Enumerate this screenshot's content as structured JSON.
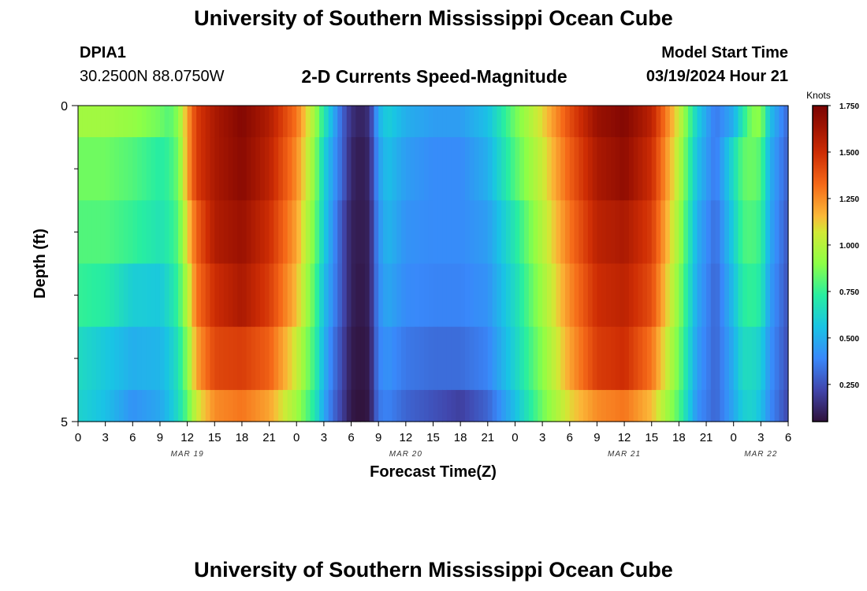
{
  "header": {
    "title": "University of Southern Mississippi Ocean Cube",
    "station": "DPIA1",
    "coords": "30.2500N  88.0750W",
    "subtitle": "2-D Currents Speed-Magnitude",
    "model_start_label": "Model Start Time",
    "model_start_value": "03/19/2024 Hour 21"
  },
  "footer": {
    "title": "University of Southern Mississippi Ocean Cube"
  },
  "chart_data": {
    "type": "heatmap",
    "xlabel": "Forecast Time(Z)",
    "ylabel": "Depth (ft)",
    "x_range_hours": [
      0,
      78
    ],
    "ylim": [
      0,
      5
    ],
    "y_ticks": [
      "0",
      "5"
    ],
    "x_tick_labels": [
      "0",
      "3",
      "6",
      "9",
      "12",
      "15",
      "18",
      "21",
      "0",
      "3",
      "6",
      "9",
      "12",
      "15",
      "18",
      "21",
      "0",
      "3",
      "6",
      "9",
      "12",
      "15",
      "18",
      "21",
      "0",
      "3",
      "6"
    ],
    "date_labels": [
      {
        "label": "MAR 19",
        "hour": 12
      },
      {
        "label": "MAR 20",
        "hour": 36
      },
      {
        "label": "MAR 21",
        "hour": 60
      },
      {
        "label": "MAR 22",
        "hour": 75
      }
    ],
    "colorbar": {
      "unit": "Knots",
      "min": 0.05,
      "max": 1.75,
      "tick_values": [
        0.25,
        0.5,
        0.75,
        1.0,
        1.25,
        1.5,
        1.75
      ],
      "tick_labels": [
        "0.250",
        "0.500",
        "0.750",
        "1.000",
        "1.250",
        "1.500",
        "1.750"
      ]
    },
    "depth_layer_bounds_ft": [
      0,
      0.5,
      1.5,
      2.5,
      3.5,
      4.5,
      5
    ],
    "hours": [
      0,
      3,
      6,
      9,
      10,
      11,
      12,
      13,
      15,
      18,
      21,
      24,
      26,
      27,
      28,
      29,
      30,
      31,
      32,
      33,
      34,
      36,
      39,
      42,
      45,
      48,
      51,
      54,
      57,
      60,
      63,
      66,
      68,
      70,
      72,
      73,
      74,
      75,
      76,
      78
    ],
    "values": [
      [
        0.95,
        0.95,
        0.92,
        0.85,
        0.8,
        0.9,
        1.2,
        1.45,
        1.6,
        1.72,
        1.58,
        1.3,
        0.95,
        0.7,
        0.5,
        0.3,
        0.15,
        0.1,
        0.15,
        0.5,
        0.6,
        0.5,
        0.45,
        0.45,
        0.55,
        0.85,
        1.1,
        1.4,
        1.65,
        1.72,
        1.55,
        1.05,
        0.6,
        0.35,
        0.5,
        0.7,
        0.88,
        0.9,
        0.55,
        0.3
      ],
      [
        0.85,
        0.85,
        0.8,
        0.72,
        0.75,
        0.85,
        1.2,
        1.45,
        1.6,
        1.7,
        1.55,
        1.25,
        0.9,
        0.62,
        0.45,
        0.3,
        0.12,
        0.08,
        0.12,
        0.45,
        0.55,
        0.45,
        0.4,
        0.4,
        0.5,
        0.8,
        1.05,
        1.35,
        1.6,
        1.68,
        1.5,
        1.0,
        0.55,
        0.35,
        0.65,
        0.82,
        0.85,
        0.8,
        0.5,
        0.28
      ],
      [
        0.8,
        0.8,
        0.75,
        0.68,
        0.72,
        0.8,
        1.1,
        1.35,
        1.58,
        1.65,
        1.5,
        1.2,
        0.85,
        0.6,
        0.42,
        0.25,
        0.1,
        0.08,
        0.1,
        0.42,
        0.52,
        0.42,
        0.4,
        0.4,
        0.45,
        0.7,
        1.0,
        1.3,
        1.55,
        1.6,
        1.45,
        0.95,
        0.5,
        0.32,
        0.6,
        0.78,
        0.8,
        0.75,
        0.48,
        0.26
      ],
      [
        0.75,
        0.72,
        0.6,
        0.58,
        0.65,
        0.75,
        1.0,
        1.3,
        1.5,
        1.6,
        1.45,
        1.15,
        0.8,
        0.55,
        0.4,
        0.25,
        0.1,
        0.07,
        0.1,
        0.4,
        0.48,
        0.4,
        0.38,
        0.38,
        0.42,
        0.65,
        0.95,
        1.25,
        1.5,
        1.55,
        1.4,
        0.9,
        0.48,
        0.3,
        0.55,
        0.72,
        0.75,
        0.7,
        0.45,
        0.25
      ],
      [
        0.65,
        0.58,
        0.5,
        0.52,
        0.58,
        0.68,
        0.9,
        1.2,
        1.42,
        1.45,
        1.35,
        1.05,
        0.75,
        0.52,
        0.35,
        0.22,
        0.08,
        0.06,
        0.08,
        0.38,
        0.42,
        0.35,
        0.32,
        0.32,
        0.38,
        0.62,
        0.9,
        1.2,
        1.45,
        1.5,
        1.3,
        0.85,
        0.45,
        0.3,
        0.5,
        0.65,
        0.65,
        0.6,
        0.42,
        0.24
      ],
      [
        0.62,
        0.55,
        0.42,
        0.48,
        0.55,
        0.65,
        0.82,
        1.05,
        1.25,
        1.3,
        1.2,
        0.95,
        0.7,
        0.48,
        0.32,
        0.2,
        0.07,
        0.05,
        0.07,
        0.35,
        0.38,
        0.3,
        0.25,
        0.2,
        0.3,
        0.55,
        0.85,
        1.1,
        1.25,
        1.3,
        1.15,
        0.8,
        0.42,
        0.3,
        0.48,
        0.6,
        0.62,
        0.55,
        0.4,
        0.22
      ]
    ]
  }
}
